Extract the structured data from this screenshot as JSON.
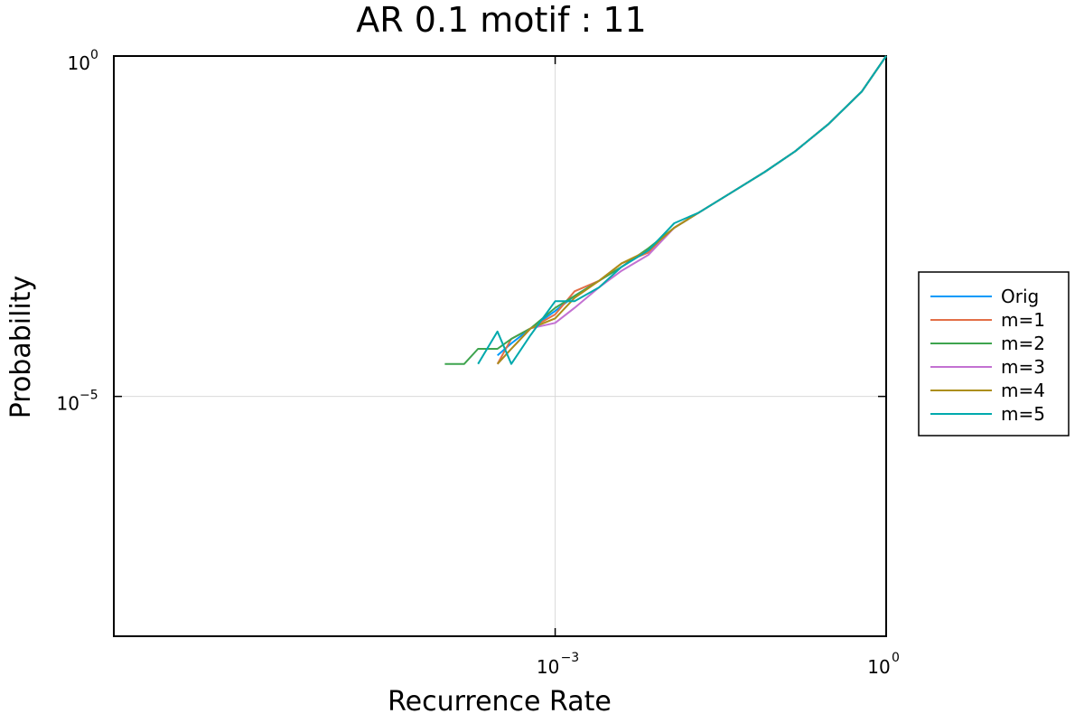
{
  "chart_data": {
    "type": "line",
    "title": "AR 0.1 motif : 11",
    "xlabel": "Recurrence Rate",
    "ylabel": "Probability",
    "x_scale": "log10",
    "y_scale": "log10",
    "xlim": [
      1e-07,
      1
    ],
    "ylim": [
      3e-09,
      1
    ],
    "x_ticks": [
      {
        "value": 0.001,
        "base": "10",
        "exp": "−3"
      },
      {
        "value": 1,
        "base": "10",
        "exp": "0"
      }
    ],
    "y_ticks": [
      {
        "value": 1e-05,
        "base": "10",
        "exp": "−5"
      },
      {
        "value": 1,
        "base": "10",
        "exp": "0"
      }
    ],
    "grid": true,
    "legend_position": "outside-right",
    "series": [
      {
        "name": "Orig",
        "color": "#009AFA",
        "x": [
          0.0003,
          0.0004,
          0.0006,
          0.001,
          0.0015,
          0.0025,
          0.004,
          0.007,
          0.012,
          0.02,
          0.04,
          0.08,
          0.15,
          0.3,
          0.6,
          1.0
        ],
        "y": [
          4e-05,
          6e-05,
          0.0001,
          0.00018,
          0.0003,
          0.0005,
          0.0008,
          0.0014,
          0.003,
          0.005,
          0.01,
          0.02,
          0.04,
          0.1,
          0.3,
          1.0
        ]
      },
      {
        "name": "m=1",
        "color": "#E36F47",
        "x": [
          0.0003,
          0.0004,
          0.0006,
          0.001,
          0.0015,
          0.0025,
          0.004,
          0.007,
          0.012,
          0.02,
          0.04,
          0.08,
          0.15,
          0.3,
          0.6,
          1.0
        ],
        "y": [
          3e-05,
          7e-05,
          0.0001,
          0.00016,
          0.00035,
          0.0005,
          0.0009,
          0.0013,
          0.003,
          0.005,
          0.01,
          0.02,
          0.04,
          0.1,
          0.3,
          1.0
        ]
      },
      {
        "name": "m=2",
        "color": "#3EA44E",
        "x": [
          0.0001,
          0.00015,
          0.0002,
          0.0003,
          0.0004,
          0.0006,
          0.001,
          0.0015,
          0.0025,
          0.004,
          0.007,
          0.012,
          0.02,
          0.04,
          0.08,
          0.15,
          0.3,
          0.6,
          1.0
        ],
        "y": [
          3e-05,
          3e-05,
          5e-05,
          5e-05,
          7e-05,
          0.0001,
          0.0002,
          0.0003,
          0.0005,
          0.0008,
          0.0015,
          0.003,
          0.005,
          0.01,
          0.02,
          0.04,
          0.1,
          0.3,
          1.0
        ]
      },
      {
        "name": "m=3",
        "color": "#C371D2",
        "x": [
          0.0003,
          0.0004,
          0.0006,
          0.001,
          0.0015,
          0.0025,
          0.004,
          0.007,
          0.012,
          0.02,
          0.04,
          0.08,
          0.15,
          0.3,
          0.6,
          1.0
        ],
        "y": [
          3e-05,
          5e-05,
          0.0001,
          0.00012,
          0.0002,
          0.0004,
          0.0007,
          0.0012,
          0.003,
          0.005,
          0.01,
          0.02,
          0.04,
          0.1,
          0.3,
          1.0
        ]
      },
      {
        "name": "m=4",
        "color": "#AC8E18",
        "x": [
          0.0003,
          0.0004,
          0.0006,
          0.001,
          0.0015,
          0.0025,
          0.004,
          0.007,
          0.012,
          0.02,
          0.04,
          0.08,
          0.15,
          0.3,
          0.6,
          1.0
        ],
        "y": [
          3e-05,
          5e-05,
          0.0001,
          0.00014,
          0.00028,
          0.0005,
          0.0009,
          0.0014,
          0.003,
          0.005,
          0.01,
          0.02,
          0.04,
          0.1,
          0.3,
          1.0
        ]
      },
      {
        "name": "m=5",
        "color": "#00A9AD",
        "x": [
          0.0002,
          0.0003,
          0.0004,
          0.0006,
          0.001,
          0.0015,
          0.0025,
          0.004,
          0.007,
          0.012,
          0.02,
          0.04,
          0.08,
          0.15,
          0.3,
          0.6,
          1.0
        ],
        "y": [
          3e-05,
          9e-05,
          3e-05,
          8e-05,
          0.00025,
          0.00025,
          0.0004,
          0.0008,
          0.0014,
          0.0035,
          0.005,
          0.01,
          0.02,
          0.04,
          0.1,
          0.3,
          1.0
        ]
      }
    ]
  }
}
